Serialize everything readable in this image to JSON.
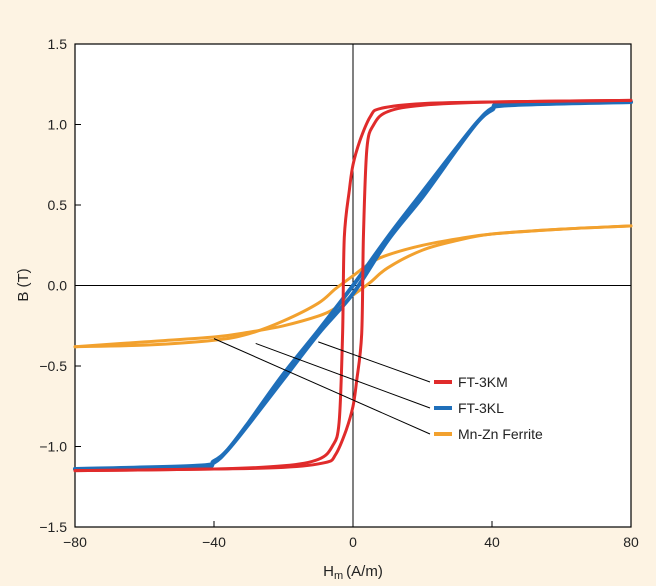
{
  "chart_data": {
    "type": "line",
    "title": "",
    "xlabel_main": "H",
    "xlabel_sub": "m",
    "xlabel_unit": "(A/m)",
    "ylabel": "B (T)",
    "xlim": [
      -80,
      80
    ],
    "ylim": [
      -1.5,
      1.5
    ],
    "x_ticks": [
      -80,
      -40,
      0,
      40,
      80
    ],
    "x_tick_labels": [
      "−80",
      "−40",
      "0",
      "40",
      "80"
    ],
    "y_ticks": [
      1.5,
      1.0,
      0.5,
      0.0,
      -0.5,
      -1.0,
      -1.5
    ],
    "y_tick_labels": [
      "1.5",
      "1.0",
      "0.5",
      "0.0",
      "−0.5",
      "−1.0",
      "−1.5"
    ],
    "grid": false,
    "legend_position": "lower-right",
    "series": [
      {
        "name": "FT-3KM",
        "color": "#e02b2b",
        "upper_branch": [
          [
            -80,
            -1.15
          ],
          [
            -40,
            -1.14
          ],
          [
            -20,
            -1.12
          ],
          [
            -10,
            -1.08
          ],
          [
            -6,
            -1.0
          ],
          [
            -4,
            -0.85
          ],
          [
            -3,
            -0.3
          ],
          [
            -2.5,
            0.3
          ],
          [
            -1,
            0.6
          ],
          [
            0,
            0.75
          ],
          [
            2,
            0.9
          ],
          [
            5,
            1.05
          ],
          [
            8,
            1.1
          ],
          [
            20,
            1.13
          ],
          [
            40,
            1.14
          ],
          [
            80,
            1.15
          ]
        ],
        "lower_branch": [
          [
            -80,
            -1.15
          ],
          [
            -40,
            -1.14
          ],
          [
            -20,
            -1.13
          ],
          [
            -8,
            -1.1
          ],
          [
            -5,
            -1.05
          ],
          [
            -2,
            -0.9
          ],
          [
            0,
            -0.75
          ],
          [
            1,
            -0.6
          ],
          [
            2.5,
            -0.3
          ],
          [
            3,
            0.3
          ],
          [
            4,
            0.85
          ],
          [
            6,
            1.0
          ],
          [
            10,
            1.08
          ],
          [
            20,
            1.12
          ],
          [
            40,
            1.14
          ],
          [
            80,
            1.15
          ]
        ]
      },
      {
        "name": "FT-3KL",
        "color": "#1f6fba",
        "upper_branch": [
          [
            -80,
            -1.14
          ],
          [
            -45,
            -1.13
          ],
          [
            -40,
            -1.1
          ],
          [
            -36,
            -1.02
          ],
          [
            -30,
            -0.85
          ],
          [
            -20,
            -0.55
          ],
          [
            -10,
            -0.28
          ],
          [
            0,
            0.0
          ],
          [
            10,
            0.3
          ],
          [
            20,
            0.58
          ],
          [
            30,
            0.86
          ],
          [
            36,
            1.02
          ],
          [
            40,
            1.09
          ],
          [
            45,
            1.12
          ],
          [
            80,
            1.14
          ]
        ],
        "lower_branch": [
          [
            -80,
            -1.14
          ],
          [
            -45,
            -1.12
          ],
          [
            -40,
            -1.09
          ],
          [
            -36,
            -1.02
          ],
          [
            -30,
            -0.86
          ],
          [
            -20,
            -0.58
          ],
          [
            -10,
            -0.3
          ],
          [
            0,
            -0.05
          ],
          [
            10,
            0.28
          ],
          [
            20,
            0.55
          ],
          [
            30,
            0.85
          ],
          [
            36,
            1.02
          ],
          [
            40,
            1.1
          ],
          [
            45,
            1.13
          ],
          [
            80,
            1.14
          ]
        ]
      },
      {
        "name": "Mn-Zn Ferrite",
        "color": "#f2a12e",
        "upper_branch": [
          [
            -80,
            -0.38
          ],
          [
            -60,
            -0.37
          ],
          [
            -40,
            -0.34
          ],
          [
            -30,
            -0.3
          ],
          [
            -20,
            -0.22
          ],
          [
            -10,
            -0.11
          ],
          [
            -5,
            -0.02
          ],
          [
            0,
            0.06
          ],
          [
            5,
            0.14
          ],
          [
            10,
            0.19
          ],
          [
            20,
            0.25
          ],
          [
            30,
            0.29
          ],
          [
            40,
            0.32
          ],
          [
            60,
            0.35
          ],
          [
            80,
            0.37
          ]
        ],
        "lower_branch": [
          [
            -80,
            -0.38
          ],
          [
            -60,
            -0.35
          ],
          [
            -40,
            -0.32
          ],
          [
            -30,
            -0.29
          ],
          [
            -20,
            -0.25
          ],
          [
            -10,
            -0.19
          ],
          [
            -5,
            -0.14
          ],
          [
            0,
            -0.06
          ],
          [
            5,
            0.02
          ],
          [
            10,
            0.11
          ],
          [
            20,
            0.22
          ],
          [
            30,
            0.28
          ],
          [
            40,
            0.32
          ],
          [
            60,
            0.35
          ],
          [
            80,
            0.37
          ]
        ]
      }
    ],
    "legend_leaders": [
      {
        "series": "FT-3KM",
        "from": [
          -10,
          -0.35
        ]
      },
      {
        "series": "FT-3KL",
        "from": [
          -28,
          -0.36
        ]
      },
      {
        "series": "Mn-Zn Ferrite",
        "from": [
          -40,
          -0.33
        ]
      }
    ]
  }
}
